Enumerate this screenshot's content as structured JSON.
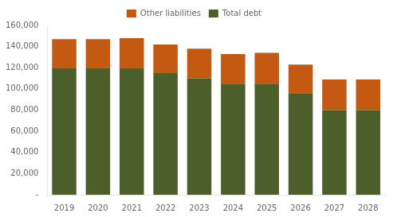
{
  "chart_data": {
    "type": "bar",
    "stacked": true,
    "categories": [
      "2019",
      "2020",
      "2021",
      "2022",
      "2023",
      "2024",
      "2025",
      "2026",
      "2027",
      "2028"
    ],
    "series": [
      {
        "name": "Total debt",
        "color": "#4c5e2a",
        "values": [
          120000,
          120000,
          120000,
          115000,
          110000,
          105000,
          105000,
          96000,
          80000,
          80000
        ]
      },
      {
        "name": "Other liabilities",
        "color": "#c45911",
        "values": [
          27000,
          27000,
          28000,
          27000,
          28000,
          28000,
          29000,
          27000,
          29000,
          29000
        ]
      }
    ],
    "ylim": [
      0,
      160000
    ],
    "yticks": [
      {
        "value": 0,
        "label": "-"
      },
      {
        "value": 20000,
        "label": "20,000"
      },
      {
        "value": 40000,
        "label": "40,000"
      },
      {
        "value": 60000,
        "label": "60,000"
      },
      {
        "value": 80000,
        "label": "80,000"
      },
      {
        "value": 100000,
        "label": "100,000"
      },
      {
        "value": 120000,
        "label": "120,000"
      },
      {
        "value": 140000,
        "label": "140,000"
      },
      {
        "value": 160000,
        "label": "160,000"
      }
    ],
    "grid": false,
    "legend": "top"
  }
}
